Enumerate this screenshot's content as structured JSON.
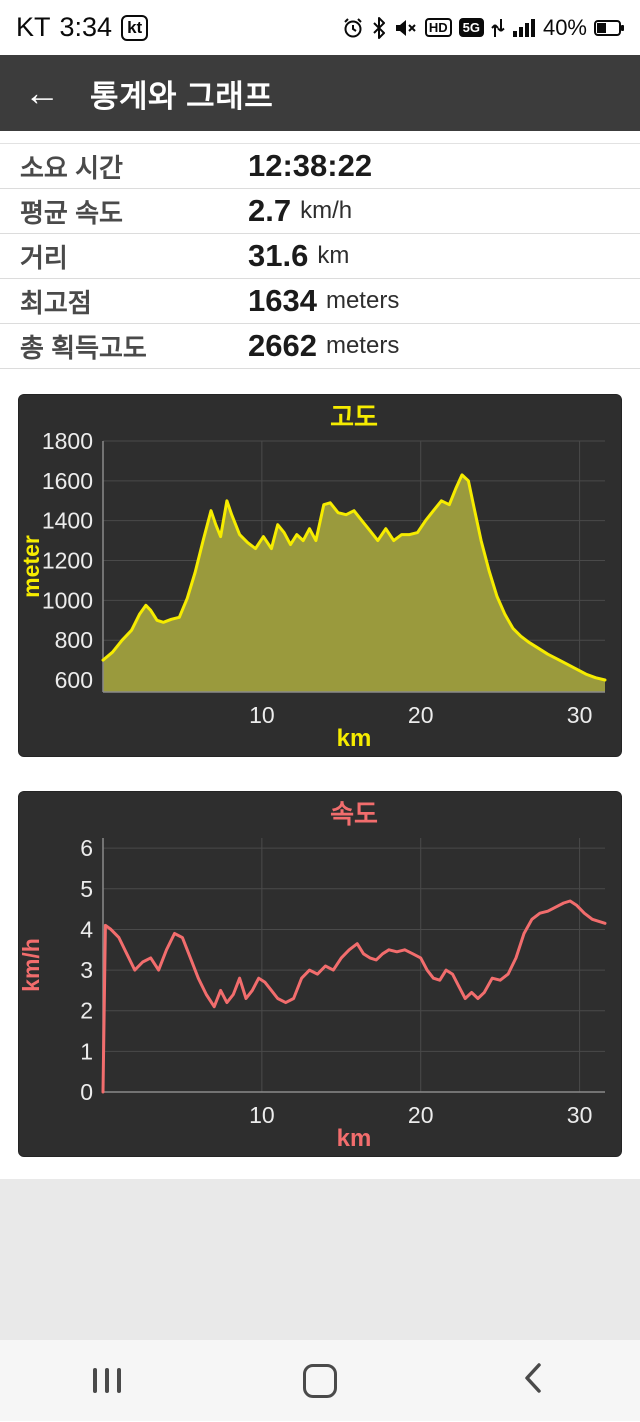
{
  "status_bar": {
    "carrier": "KT",
    "time": "3:34",
    "carrier_badge": "kt",
    "hd_label": "HD",
    "network_label": "5G",
    "battery_percent": "40%",
    "battery_level": 0.4
  },
  "header": {
    "back_icon": "←",
    "title": "통계와 그래프"
  },
  "stats": [
    {
      "label": "소요 시간",
      "value": "12:38:22",
      "unit": ""
    },
    {
      "label": "평균 속도",
      "value": "2.7",
      "unit": "km/h"
    },
    {
      "label": "거리",
      "value": "31.6",
      "unit": "km"
    },
    {
      "label": "최고점",
      "value": "1634",
      "unit": "meters"
    },
    {
      "label": "총 획득고도",
      "value": "2662",
      "unit": "meters"
    }
  ],
  "chart_data": [
    {
      "type": "area",
      "title": "고도",
      "xlabel": "km",
      "ylabel": "meter",
      "accent": "#f6ec00",
      "line_color": "#f6ec00",
      "fill_color": "#9a9a3d",
      "bg": "#2e2e2e",
      "grid_color": "#4a4a4a",
      "tick_color": "#ececec",
      "xlim": [
        0,
        31.6
      ],
      "ylim": [
        540,
        1800
      ],
      "yticks": [
        600,
        800,
        1000,
        1200,
        1400,
        1600,
        1800
      ],
      "xticks": [
        10,
        20,
        30
      ],
      "x": [
        0,
        0.6,
        1.2,
        1.8,
        2.3,
        2.7,
        3.0,
        3.4,
        3.8,
        4.3,
        4.8,
        5.3,
        5.8,
        6.3,
        6.8,
        7.1,
        7.4,
        7.8,
        8.1,
        8.6,
        9.1,
        9.6,
        10.1,
        10.6,
        11.0,
        11.4,
        11.8,
        12.2,
        12.6,
        13.0,
        13.4,
        13.9,
        14.3,
        14.8,
        15.3,
        15.8,
        16.3,
        16.8,
        17.3,
        17.8,
        18.3,
        18.8,
        19.3,
        19.8,
        20.3,
        20.8,
        21.3,
        21.8,
        22.2,
        22.6,
        23.0,
        23.4,
        23.8,
        24.3,
        24.8,
        25.3,
        25.8,
        26.3,
        26.8,
        27.4,
        28.0,
        28.6,
        29.2,
        29.8,
        30.4,
        31.0,
        31.6
      ],
      "y": [
        700,
        740,
        800,
        850,
        930,
        975,
        950,
        900,
        890,
        905,
        915,
        1010,
        1140,
        1300,
        1450,
        1380,
        1320,
        1500,
        1430,
        1330,
        1290,
        1260,
        1320,
        1260,
        1380,
        1340,
        1280,
        1330,
        1300,
        1360,
        1300,
        1480,
        1490,
        1440,
        1430,
        1450,
        1400,
        1350,
        1300,
        1360,
        1300,
        1330,
        1330,
        1340,
        1400,
        1450,
        1500,
        1480,
        1560,
        1630,
        1600,
        1450,
        1300,
        1150,
        1020,
        930,
        860,
        820,
        790,
        760,
        730,
        705,
        680,
        655,
        630,
        612,
        600
      ]
    },
    {
      "type": "line",
      "title": "속도",
      "xlabel": "km",
      "ylabel": "km/h",
      "accent": "#f26d6d",
      "line_color": "#f26d6d",
      "bg": "#2e2e2e",
      "grid_color": "#4a4a4a",
      "tick_color": "#ececec",
      "xlim": [
        0,
        31.6
      ],
      "ylim": [
        0,
        6.25
      ],
      "yticks": [
        0,
        1,
        2,
        3,
        4,
        5,
        6
      ],
      "xticks": [
        10,
        20,
        30
      ],
      "x": [
        0,
        0.15,
        0.5,
        1.0,
        1.5,
        2.0,
        2.5,
        3.0,
        3.5,
        4.0,
        4.5,
        5.0,
        5.5,
        6.0,
        6.5,
        7.0,
        7.4,
        7.8,
        8.2,
        8.6,
        9.0,
        9.4,
        9.8,
        10.2,
        10.6,
        11.0,
        11.5,
        12.0,
        12.5,
        13.0,
        13.5,
        14.0,
        14.5,
        15.0,
        15.5,
        16.0,
        16.4,
        16.8,
        17.2,
        17.6,
        18.0,
        18.5,
        19.0,
        19.5,
        20.0,
        20.4,
        20.8,
        21.2,
        21.6,
        22.0,
        22.4,
        22.8,
        23.2,
        23.6,
        24.0,
        24.5,
        25.0,
        25.5,
        26.0,
        26.5,
        27.0,
        27.5,
        28.0,
        28.5,
        29.0,
        29.4,
        29.8,
        30.3,
        30.8,
        31.2,
        31.6
      ],
      "y": [
        0,
        4.1,
        4.0,
        3.8,
        3.4,
        3.0,
        3.2,
        3.3,
        3.0,
        3.5,
        3.9,
        3.8,
        3.3,
        2.8,
        2.4,
        2.1,
        2.5,
        2.2,
        2.4,
        2.8,
        2.3,
        2.5,
        2.8,
        2.7,
        2.5,
        2.3,
        2.2,
        2.3,
        2.8,
        3.0,
        2.9,
        3.1,
        3.0,
        3.3,
        3.5,
        3.65,
        3.4,
        3.3,
        3.25,
        3.4,
        3.5,
        3.45,
        3.5,
        3.4,
        3.3,
        3.0,
        2.8,
        2.75,
        3.0,
        2.9,
        2.6,
        2.3,
        2.45,
        2.3,
        2.45,
        2.8,
        2.75,
        2.9,
        3.3,
        3.9,
        4.25,
        4.4,
        4.45,
        4.55,
        4.65,
        4.7,
        4.6,
        4.4,
        4.25,
        4.2,
        4.15
      ]
    }
  ],
  "colors": {
    "header_bg": "#3c3c3c",
    "chart_bg": "#2e2e2e",
    "elevation_accent": "#f6ec00",
    "speed_accent": "#f26d6d",
    "bottom_gray": "#e9e9e9"
  }
}
